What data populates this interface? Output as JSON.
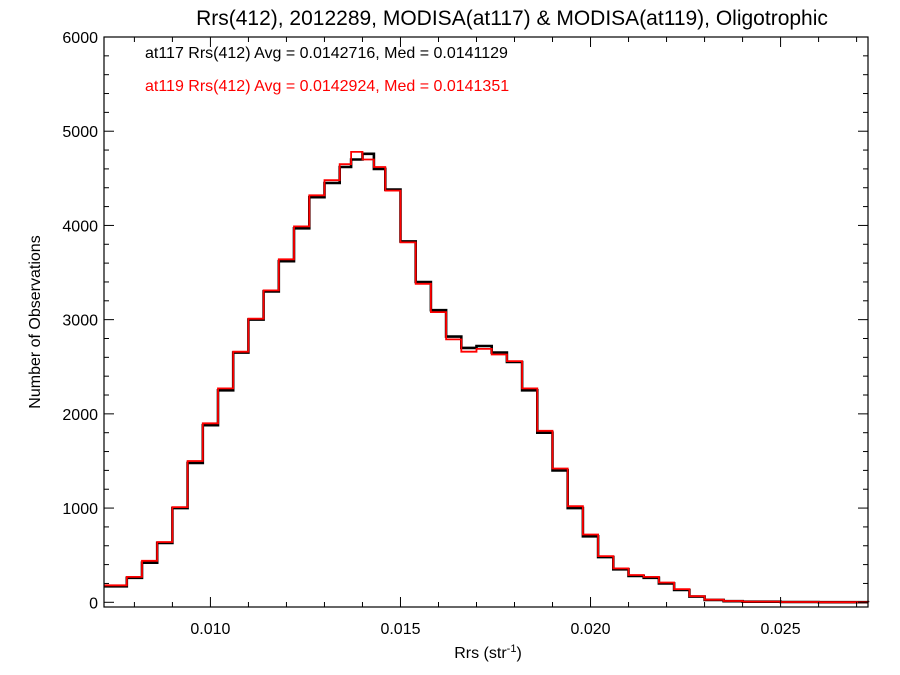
{
  "chart_data": {
    "type": "line",
    "title": "Rrs(412), 2012289, MODISA(at117) & MODISA(at119), Oligotrophic",
    "xlabel_main": "Rrs (str",
    "xlabel_sup": "-1",
    "xlabel_close": ")",
    "ylabel": "Number of Observations",
    "xlim": [
      0.0072,
      0.0273
    ],
    "ylim": [
      -50,
      6000
    ],
    "x_ticks": [
      0.01,
      0.015,
      0.02,
      0.025
    ],
    "x_tick_labels": [
      "0.010",
      "0.015",
      "0.020",
      "0.025"
    ],
    "y_ticks": [
      0,
      1000,
      2000,
      3000,
      4000,
      5000,
      6000
    ],
    "y_tick_labels": [
      "0",
      "1000",
      "2000",
      "3000",
      "4000",
      "5000",
      "6000"
    ],
    "grid": false,
    "legend_position": "top-left",
    "series": [
      {
        "name": "at117",
        "color": "#000000",
        "x": [
          0.0072,
          0.0078,
          0.0082,
          0.0086,
          0.009,
          0.0094,
          0.0098,
          0.0102,
          0.0106,
          0.011,
          0.0114,
          0.0118,
          0.0122,
          0.0126,
          0.013,
          0.0134,
          0.0137,
          0.014,
          0.0143,
          0.0146,
          0.015,
          0.0154,
          0.0158,
          0.0162,
          0.0166,
          0.017,
          0.0174,
          0.0178,
          0.0182,
          0.0186,
          0.019,
          0.0194,
          0.0198,
          0.0202,
          0.0206,
          0.021,
          0.0214,
          0.0218,
          0.0222,
          0.0226,
          0.023,
          0.0235,
          0.024,
          0.025,
          0.026,
          0.0273
        ],
        "y": [
          170,
          260,
          420,
          630,
          1000,
          1480,
          1880,
          2250,
          2650,
          3000,
          3300,
          3620,
          3970,
          4300,
          4450,
          4620,
          4700,
          4760,
          4600,
          4380,
          3830,
          3400,
          3100,
          2820,
          2700,
          2720,
          2650,
          2550,
          2250,
          1800,
          1400,
          1000,
          700,
          480,
          350,
          280,
          260,
          200,
          130,
          60,
          25,
          12,
          6,
          3,
          1,
          0
        ]
      },
      {
        "name": "at119",
        "color": "#ff0000",
        "x": [
          0.0072,
          0.0078,
          0.0082,
          0.0086,
          0.009,
          0.0094,
          0.0098,
          0.0102,
          0.0106,
          0.011,
          0.0114,
          0.0118,
          0.0122,
          0.0126,
          0.013,
          0.0134,
          0.0137,
          0.014,
          0.0143,
          0.0146,
          0.015,
          0.0154,
          0.0158,
          0.0162,
          0.0166,
          0.017,
          0.0174,
          0.0178,
          0.0182,
          0.0186,
          0.019,
          0.0194,
          0.0198,
          0.0202,
          0.0206,
          0.021,
          0.0214,
          0.0218,
          0.0222,
          0.0226,
          0.023,
          0.0235,
          0.024,
          0.025,
          0.026,
          0.0273
        ],
        "y": [
          180,
          270,
          440,
          640,
          1010,
          1500,
          1900,
          2270,
          2660,
          3010,
          3310,
          3640,
          3990,
          4320,
          4480,
          4650,
          4780,
          4700,
          4620,
          4370,
          3820,
          3380,
          3080,
          2790,
          2660,
          2690,
          2630,
          2560,
          2270,
          1820,
          1420,
          1020,
          720,
          490,
          360,
          290,
          270,
          210,
          140,
          65,
          28,
          14,
          7,
          3,
          1,
          0
        ]
      }
    ],
    "annotations": [
      {
        "text": "at117 Rrs(412) Avg = 0.0142716, Med = 0.0141129",
        "color": "#000000"
      },
      {
        "text": "at119 Rrs(412) Avg = 0.0142924, Med = 0.0141351",
        "color": "#ff0000"
      }
    ]
  }
}
